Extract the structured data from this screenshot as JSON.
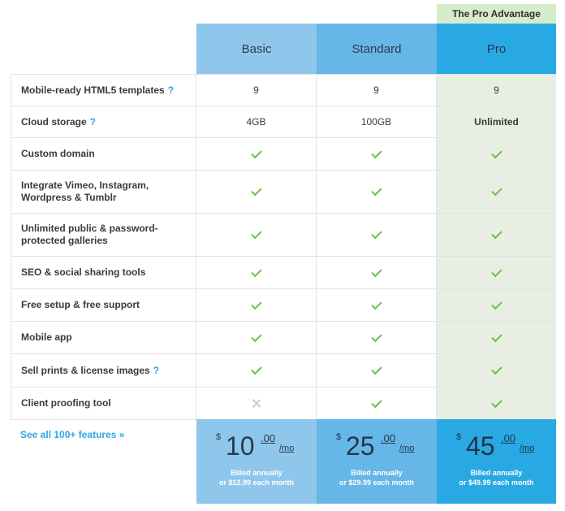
{
  "banner": "The Pro Advantage",
  "plans": [
    {
      "name": "Basic"
    },
    {
      "name": "Standard"
    },
    {
      "name": "Pro"
    }
  ],
  "features": [
    {
      "label": "Mobile-ready HTML5 templates",
      "help": "?",
      "values": [
        "9",
        "9",
        "9"
      ]
    },
    {
      "label": "Cloud storage",
      "help": "?",
      "values": [
        "4GB",
        "100GB",
        "Unlimited"
      ]
    },
    {
      "label": "Custom domain",
      "help": "",
      "values": [
        "check",
        "check",
        "check"
      ]
    },
    {
      "label": "Integrate Vimeo, Instagram, Wordpress & Tumblr",
      "help": "",
      "values": [
        "check",
        "check",
        "check"
      ]
    },
    {
      "label": "Unlimited public & password-protected galleries",
      "help": "",
      "values": [
        "check",
        "check",
        "check"
      ]
    },
    {
      "label": "SEO & social sharing tools",
      "help": "",
      "values": [
        "check",
        "check",
        "check"
      ]
    },
    {
      "label": "Free setup & free support",
      "help": "",
      "values": [
        "check",
        "check",
        "check"
      ]
    },
    {
      "label": "Mobile app",
      "help": "",
      "values": [
        "check",
        "check",
        "check"
      ]
    },
    {
      "label": "Sell prints & license images",
      "help": "?",
      "values": [
        "check",
        "check",
        "check"
      ]
    },
    {
      "label": "Client proofing tool",
      "help": "",
      "values": [
        "cross",
        "check",
        "check"
      ]
    }
  ],
  "see_all": "See all 100+ features »",
  "prices": [
    {
      "currency": "$",
      "amount": "10",
      "cents": ".00",
      "per": "/mo",
      "billed_1": "Billed annually",
      "billed_2": "or $12.99 each month"
    },
    {
      "currency": "$",
      "amount": "25",
      "cents": ".00",
      "per": "/mo",
      "billed_1": "Billed annually",
      "billed_2": "or $29.99 each month"
    },
    {
      "currency": "$",
      "amount": "45",
      "cents": ".00",
      "per": "/mo",
      "billed_1": "Billed annually",
      "billed_2": "or $49.99 each month"
    }
  ],
  "colors": {
    "basic": "#8fc6ec",
    "standard": "#66b6e8",
    "pro": "#29a9e3",
    "pro_banner": "#d7ecc8",
    "check": "#6cc04a",
    "link": "#29a9e3"
  }
}
